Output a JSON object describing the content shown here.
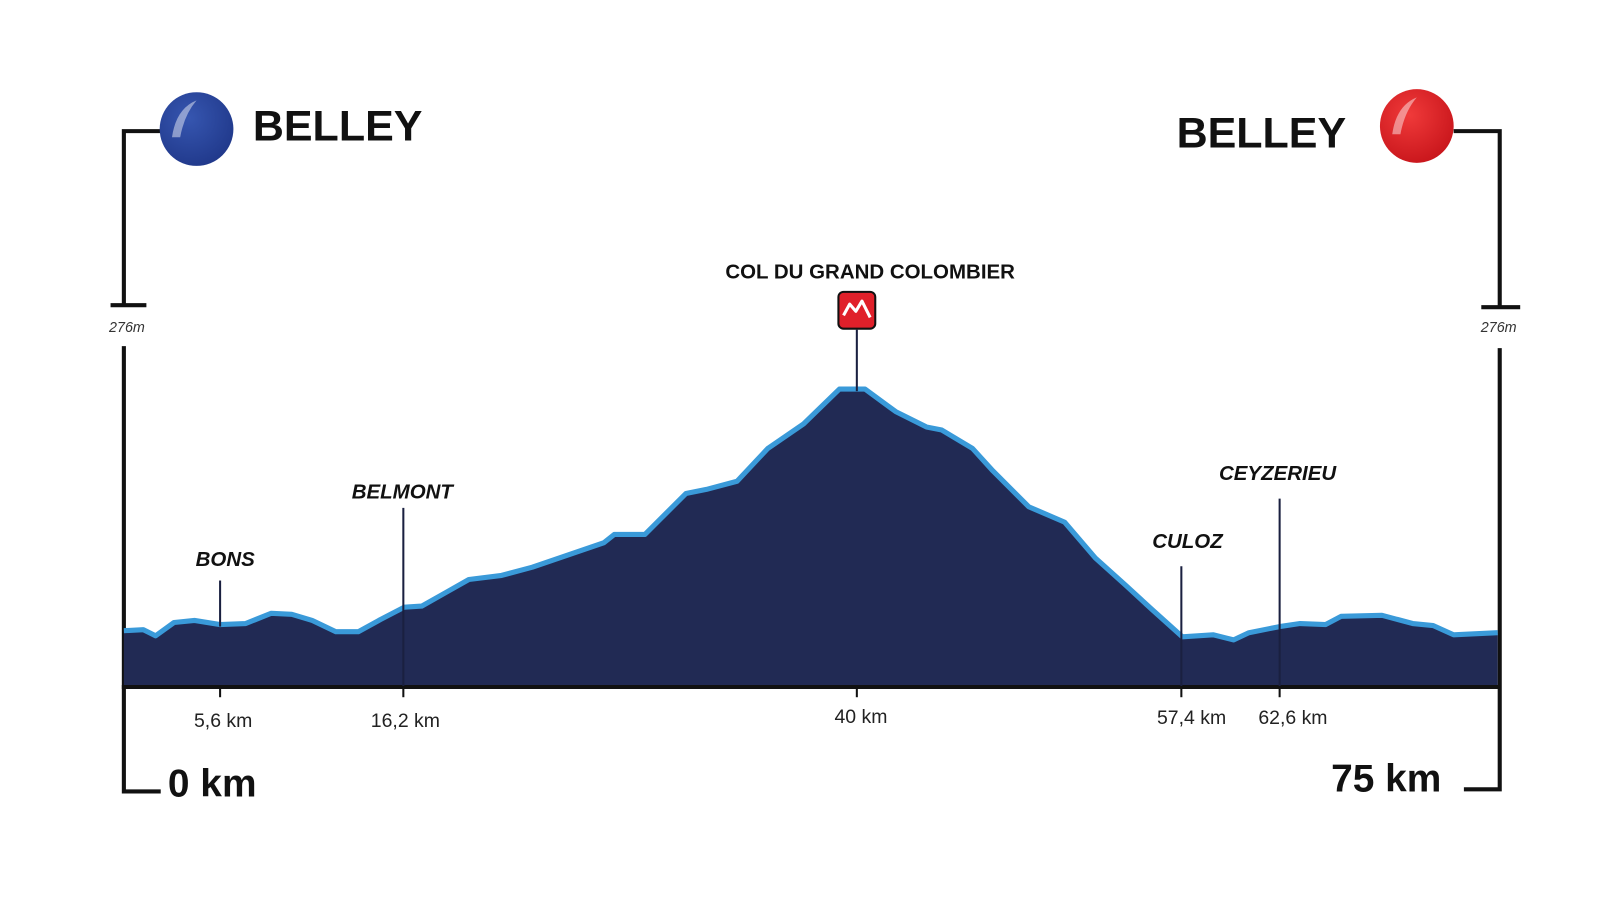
{
  "start": {
    "name": "BELLEY",
    "distance": "0 km",
    "altitude": "276m"
  },
  "finish": {
    "name": "BELLEY",
    "distance": "75 km",
    "altitude": "276m"
  },
  "summit": {
    "name": "COL DU GRAND COLOMBIER",
    "distance": "40 km"
  },
  "waypoints": [
    {
      "name": "BONS",
      "distance": "5,6 km"
    },
    {
      "name": "BELMONT",
      "distance": "16,2 km"
    },
    {
      "name": "CULOZ",
      "distance": "57,4 km"
    },
    {
      "name": "CEYZERIEU",
      "distance": "62,6 km"
    }
  ]
}
